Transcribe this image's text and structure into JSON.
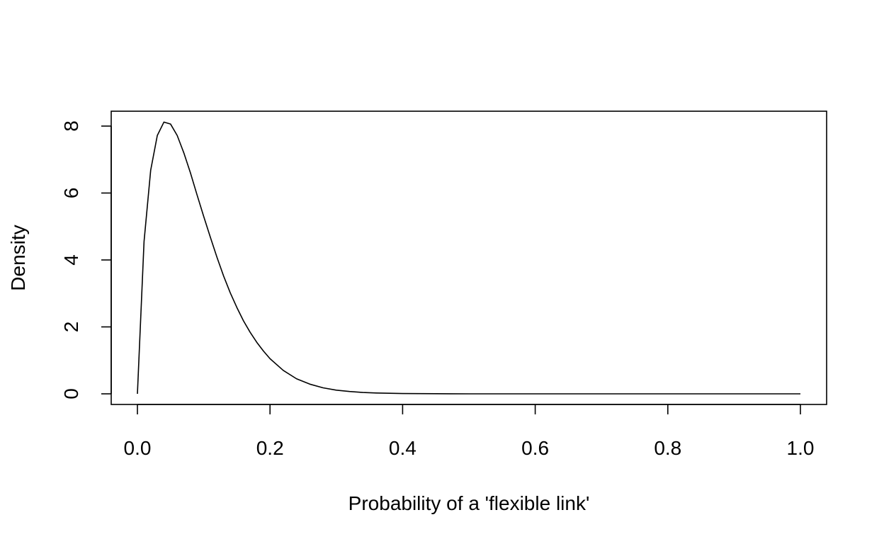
{
  "chart_data": {
    "type": "line",
    "title": "",
    "xlabel": "Probability of a 'flexible link'",
    "ylabel": "Density",
    "xlim": [
      0,
      1
    ],
    "ylim": [
      0,
      8
    ],
    "x_ticks": [
      0.0,
      0.2,
      0.4,
      0.6,
      0.8,
      1.0
    ],
    "x_tick_labels": [
      "0.0",
      "0.2",
      "0.4",
      "0.6",
      "0.8",
      "1.0"
    ],
    "y_ticks": [
      0,
      2,
      4,
      6,
      8
    ],
    "y_tick_labels": [
      "0",
      "2",
      "4",
      "6",
      "8"
    ],
    "grid": false,
    "legend": "none",
    "line_color": "#000000",
    "series": [
      {
        "x": [
          0.0,
          0.01,
          0.02,
          0.03,
          0.04,
          0.05,
          0.06,
          0.07,
          0.08,
          0.09,
          0.1,
          0.11,
          0.12,
          0.13,
          0.14,
          0.15,
          0.16,
          0.17,
          0.18,
          0.19,
          0.2,
          0.22,
          0.24,
          0.26,
          0.28,
          0.3,
          0.32,
          0.34,
          0.36,
          0.4,
          0.45,
          0.5,
          0.6,
          0.7,
          0.8,
          0.9,
          1.0
        ],
        "y": [
          0.0,
          4.55,
          6.68,
          7.72,
          8.12,
          8.06,
          7.72,
          7.2,
          6.6,
          5.94,
          5.3,
          4.68,
          4.08,
          3.52,
          3.02,
          2.58,
          2.18,
          1.84,
          1.54,
          1.28,
          1.05,
          0.7,
          0.45,
          0.29,
          0.18,
          0.11,
          0.07,
          0.04,
          0.025,
          0.01,
          0.003,
          0.0,
          0.0,
          0.0,
          0.0,
          0.0,
          0.0
        ]
      }
    ]
  }
}
